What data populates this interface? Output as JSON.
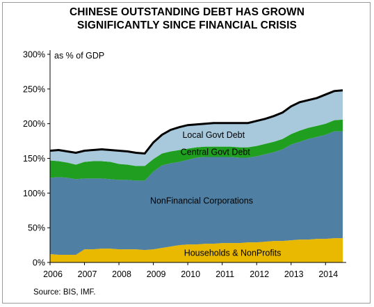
{
  "title_line1": "CHINESE OUTSTANDING DEBT HAS GROWN",
  "title_line2": "SIGNIFICANTLY SINCE FINANCIAL CRISIS",
  "source": "Source: BIS, IMF.",
  "chart_data": {
    "type": "area",
    "stacked": true,
    "title": "CHINESE OUTSTANDING DEBT HAS GROWN SIGNIFICANTLY SINCE FINANCIAL CRISIS",
    "ylabel": "as % of GDP",
    "xlabel": "",
    "xlim": [
      2006,
      2014.6
    ],
    "ylim": [
      0,
      300
    ],
    "x_ticks": [
      "2006",
      "2007",
      "2008",
      "2009",
      "2010",
      "2011",
      "2012",
      "2013",
      "2014"
    ],
    "y_ticks": [
      "0%",
      "50%",
      "100%",
      "150%",
      "200%",
      "250%",
      "300%"
    ],
    "grid": false,
    "x": [
      2006.0,
      2006.25,
      2006.5,
      2006.75,
      2007.0,
      2007.25,
      2007.5,
      2007.75,
      2008.0,
      2008.25,
      2008.5,
      2008.75,
      2009.0,
      2009.25,
      2009.5,
      2009.75,
      2010.0,
      2010.25,
      2010.5,
      2010.75,
      2011.0,
      2011.25,
      2011.5,
      2011.75,
      2012.0,
      2012.25,
      2012.5,
      2012.75,
      2013.0,
      2013.25,
      2013.5,
      2013.75,
      2014.0,
      2014.25,
      2014.5
    ],
    "series": [
      {
        "name": "Households & NonProfits",
        "color": "#e9b800",
        "values": [
          12,
          11,
          11,
          11,
          19,
          19,
          20,
          20,
          19,
          19,
          19,
          18,
          19,
          21,
          23,
          25,
          26,
          26,
          27,
          27,
          28,
          28,
          28,
          29,
          29,
          30,
          31,
          31,
          32,
          33,
          33,
          34,
          34,
          35,
          35
        ]
      },
      {
        "name": "NonFinancial Corporations",
        "color": "#4f7fa3",
        "values": [
          110,
          112,
          111,
          109,
          102,
          102,
          101,
          100,
          100,
          100,
          99,
          100,
          112,
          119,
          120,
          120,
          122,
          125,
          125,
          125,
          124,
          124,
          123,
          122,
          124,
          126,
          128,
          132,
          138,
          141,
          145,
          147,
          150,
          154,
          154
        ]
      },
      {
        "name": "Central Govt Debt",
        "color": "#1f9e1f",
        "values": [
          25,
          23,
          22,
          21,
          24,
          25,
          25,
          25,
          23,
          22,
          21,
          21,
          18,
          17,
          17,
          17,
          16,
          15,
          15,
          15,
          15,
          15,
          15,
          15,
          15,
          15,
          15,
          15,
          15,
          16,
          16,
          16,
          16,
          16,
          17
        ]
      },
      {
        "name": "Local Govt Debt",
        "color": "#a8c8dc",
        "values": [
          14,
          16,
          16,
          17,
          16,
          16,
          17,
          17,
          19,
          19,
          19,
          18,
          24,
          27,
          31,
          33,
          34,
          33,
          33,
          34,
          34,
          34,
          35,
          35,
          36,
          36,
          37,
          38,
          40,
          41,
          40,
          40,
          42,
          42,
          42
        ]
      }
    ],
    "total_line": {
      "color": "#000000"
    }
  }
}
